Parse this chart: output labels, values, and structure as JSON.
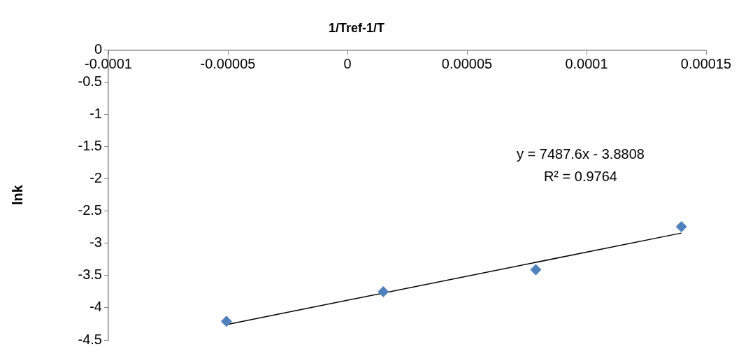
{
  "chart_data": {
    "type": "scatter",
    "title": "1/Tref-1/T",
    "ylabel": "lnk",
    "series": [
      {
        "color": "#4f81bd",
        "x": [
          -5.06e-05,
          1.5e-05,
          7.88e-05,
          0.0001397
        ],
        "values": [
          -4.21,
          -3.75,
          -3.41,
          -2.74
        ],
        "marker": "diamond"
      },
      {
        "type": "line",
        "color": "#000000",
        "x": [
          -5.06e-05,
          0.0001397
        ],
        "values": [
          -4.26,
          -2.84
        ],
        "marker": "none"
      }
    ],
    "xlim": [
      -0.0001,
      0.00015
    ],
    "xticks": [
      -0.0001,
      {
        "value": -5e-05,
        "label": "-0.00005"
      },
      0,
      {
        "value": 5e-05,
        "label": "0.00005"
      },
      0.0001,
      0.00015
    ],
    "ylim": [
      -4.5,
      0
    ],
    "yticks": [
      0,
      -0.5,
      -1,
      -1.5,
      -2,
      -2.5,
      -3,
      -3.5,
      -4,
      -4.5
    ],
    "annotations": [
      "y = 7487.6x - 3.8808",
      "R² = 0.9764"
    ],
    "grid": false,
    "legend": false
  }
}
